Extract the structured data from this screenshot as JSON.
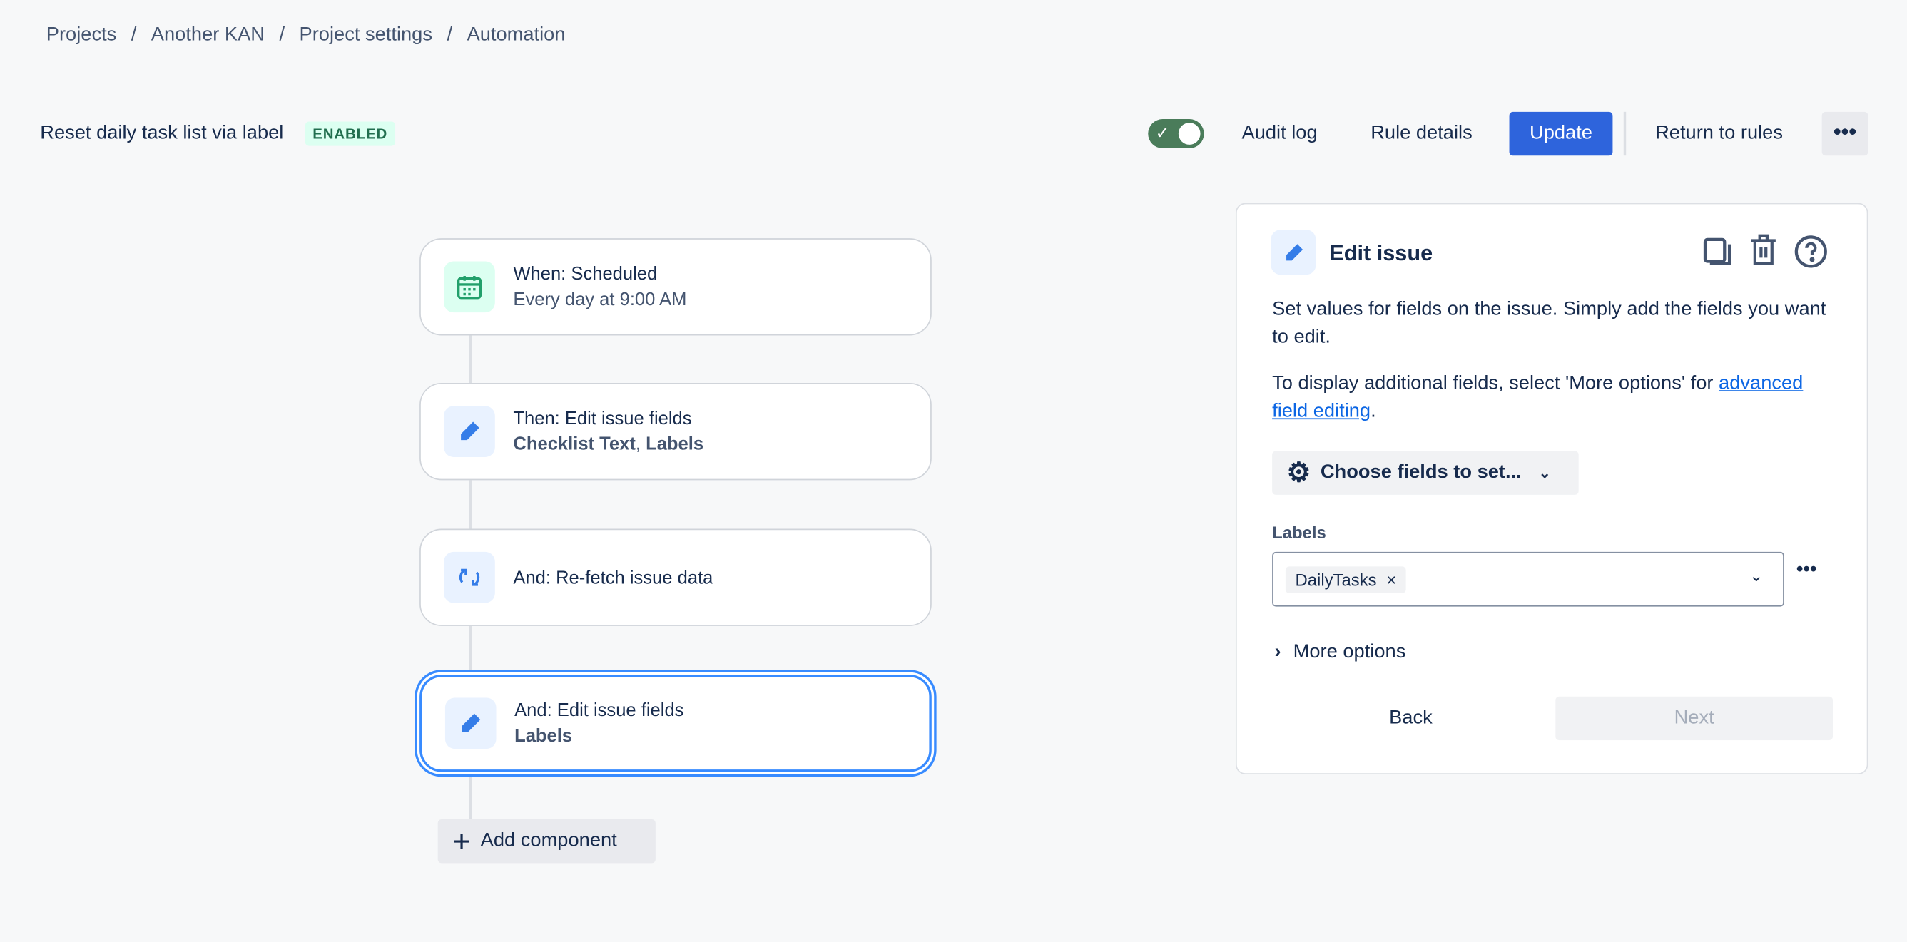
{
  "breadcrumb": [
    "Projects",
    "Another KAN",
    "Project settings",
    "Automation"
  ],
  "rule": {
    "name": "Reset daily task list via label",
    "status": "ENABLED",
    "enabled": true
  },
  "toolbar": {
    "audit_log": "Audit log",
    "rule_details": "Rule details",
    "update": "Update",
    "return": "Return to rules",
    "more": "•••"
  },
  "flow": [
    {
      "title": "When: Scheduled",
      "subtitle": "Every day at 9:00 AM",
      "icon": "calendar-icon"
    },
    {
      "title": "Then: Edit issue fields",
      "subtitle_bold1": "Checklist Text",
      "subtitle_sep": ", ",
      "subtitle_bold2": "Labels",
      "icon": "pencil-icon"
    },
    {
      "title": "And: Re-fetch issue data",
      "icon": "refresh-icon"
    },
    {
      "title": "And: Edit issue fields",
      "subtitle": "Labels",
      "icon": "pencil-icon",
      "selected": true
    }
  ],
  "add_component": "Add component",
  "panel": {
    "title": "Edit issue",
    "desc": "Set values for fields on the issue. Simply add the fields you want to edit.",
    "desc2": "To display additional fields, select 'More options' for ",
    "link": "advanced field editing",
    "period": ".",
    "choose": "Choose fields to set...",
    "labels_label": "Labels",
    "chip": "DailyTasks",
    "more_options": "More options",
    "back": "Back",
    "next": "Next"
  },
  "colors": {
    "primary": "#2e64dc",
    "enabled_green": "#216e4e",
    "toggle": "#4a7c5a"
  }
}
